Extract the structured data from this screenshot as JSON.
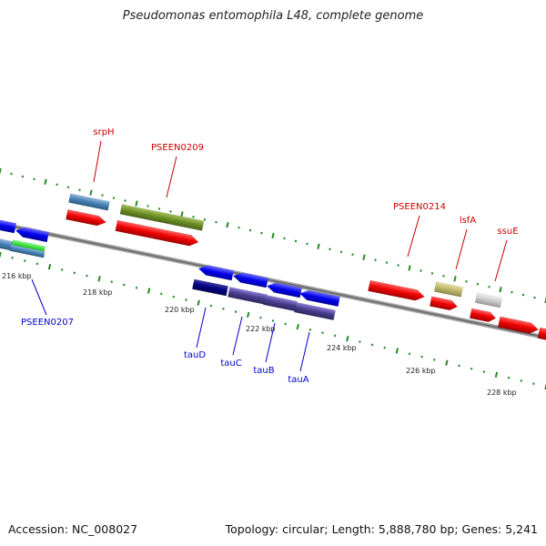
{
  "title": "Pseudomonas entomophila L48, complete genome",
  "footer": {
    "accession": "Accession: NC_008027",
    "summary": "Topology: circular; Length: 5,888,780 bp; Genes: 5,241"
  },
  "colors": {
    "forward_label": "#cc0000",
    "reverse_label": "#0000cc",
    "backbone": "#777777",
    "tick": "#228b22"
  },
  "scale_labels": [
    "216 kbp",
    "218 kbp",
    "220 kbp",
    "222 kbp",
    "224 kbp",
    "226 kbp",
    "228 kbp"
  ],
  "gene_labels": {
    "forward": [
      "srpH",
      "PSEEN0209",
      "PSEEN0214",
      "lsfA",
      "ssuE"
    ],
    "reverse": [
      "PSEEN0207",
      "tauD",
      "tauC",
      "tauB",
      "tauA"
    ]
  }
}
